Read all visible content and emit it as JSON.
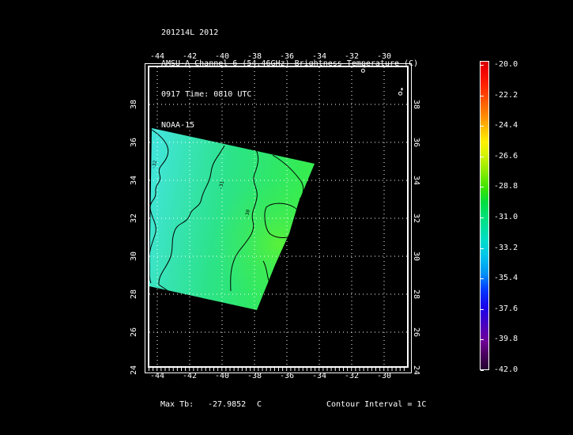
{
  "header": {
    "line1": "201214L 2012",
    "line2": "AMSU-A Channel 6 (54.46GHz) Brightness Temperature (C)",
    "line3": "0917 Time: 0810 UTC",
    "line4": "NOAA-15"
  },
  "footer": {
    "max_tb_label": "Max Tb:",
    "max_tb_value": "-27.9852",
    "max_tb_unit": "C",
    "contour_interval_text": "Contour Interval = 1C"
  },
  "colors": {
    "background": "#000000",
    "frame": "#ffffff",
    "grid": "#ffffff",
    "contour": "#000000",
    "swath_left_cyan": "#41e5d8",
    "swath_mid_green": "#2ce38c",
    "swath_right_green": "#35ec51",
    "swath_hotspot": "#62f233"
  },
  "chart_data": {
    "type": "heatmap",
    "subtype": "satellite-swath-contour-map",
    "title": "AMSU-A Channel 6 (54.46GHz) Brightness Temperature (C)",
    "run_id": "201214L 2012",
    "time_label": "0917 Time: 0810 UTC",
    "satellite": "NOAA-15",
    "grid": "dotted graticule on",
    "legend_position": "right colorbar",
    "x_ticks": [
      -44,
      -42,
      -40,
      -38,
      -36,
      -34,
      -32,
      -30
    ],
    "x_tick_labels": [
      "-44",
      "-42",
      "-40",
      "-38",
      "-36",
      "-34",
      "-32",
      "-30"
    ],
    "y_ticks": [
      38,
      36,
      34,
      32,
      30,
      28,
      26,
      24
    ],
    "y_tick_labels": [
      "38",
      "36",
      "34",
      "32",
      "30",
      "28",
      "26",
      "24"
    ],
    "xlim": [
      -44.8,
      -28.3
    ],
    "ylim": [
      24,
      40.2
    ],
    "colorbar": {
      "min": -42.0,
      "max": -20.0,
      "tick_labels": [
        "-20.0",
        "-22.2",
        "-24.4",
        "-26.6",
        "-28.8",
        "-31.0",
        "-33.2",
        "-35.4",
        "-37.6",
        "-39.8",
        "-42.0"
      ],
      "colormap": "rainbow (red=-20 warm to dark purple=-42 cold)"
    },
    "max_tb_c": -27.9852,
    "contour_interval_c": 1,
    "contour_labels": [
      "-32",
      "-31",
      "-30"
    ],
    "swath_corners_lonlat": [
      [
        -44.3,
        36.8
      ],
      [
        -34.3,
        34.8
      ],
      [
        -37.9,
        27.2
      ],
      [
        -44.5,
        28.4
      ]
    ],
    "swath_value_range_c": [
      -34,
      -28
    ],
    "map_marks_lonlat": [
      [
        -31.3,
        39.9
      ],
      [
        -29.0,
        38.7
      ]
    ]
  }
}
